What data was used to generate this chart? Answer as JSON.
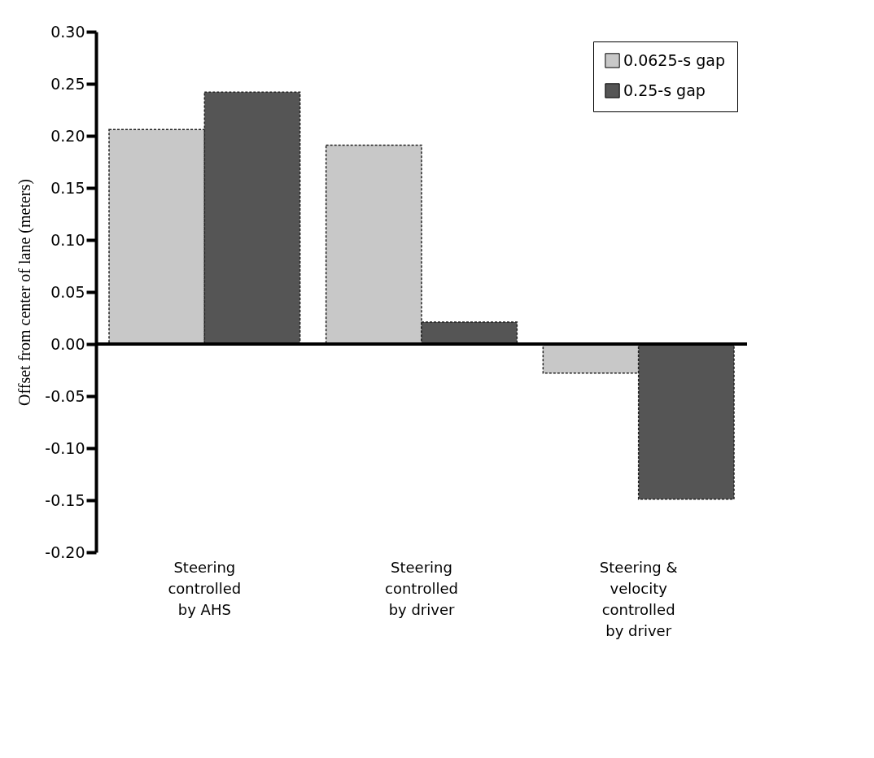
{
  "chart_data": {
    "type": "bar",
    "ylabel": "Offset from center of lane (meters)",
    "categories": [
      "Steering controlled by AHS",
      "Steering controlled by driver",
      "Steering & velocity controlled by driver"
    ],
    "series": [
      {
        "name": "0.0625-s gap",
        "color": "#c8c8c8",
        "values": [
          0.206,
          0.191,
          -0.028
        ]
      },
      {
        "name": "0.25-s gap",
        "color": "#555555",
        "values": [
          0.242,
          0.021,
          -0.149
        ]
      }
    ],
    "ylim": [
      -0.2,
      0.3
    ],
    "yticks": [
      {
        "value": -0.2,
        "label": "-0.20"
      },
      {
        "value": -0.15,
        "label": "-0.15"
      },
      {
        "value": -0.1,
        "label": "-0.10"
      },
      {
        "value": -0.05,
        "label": "-0.05"
      },
      {
        "value": 0,
        "label": "0.00"
      },
      {
        "value": 0.05,
        "label": "0.05"
      },
      {
        "value": 0.1,
        "label": "0.10"
      },
      {
        "value": 0.15,
        "label": "0.15"
      },
      {
        "value": 0.2,
        "label": "0.20"
      },
      {
        "value": 0.25,
        "label": "0.25"
      },
      {
        "value": 0.3,
        "label": "0.30"
      }
    ],
    "legend": "top right"
  }
}
